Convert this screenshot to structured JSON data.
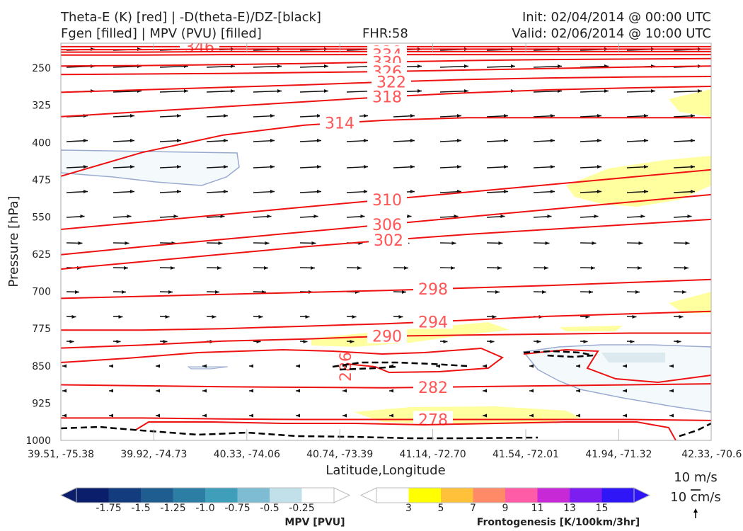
{
  "header": {
    "title_left_1": "Theta-E (K) [red] | -D(theta-E)/DZ-[black]",
    "title_left_2": "Fgen [filled] | MPV (PVU) [filled]",
    "fhr": "FHR:58",
    "init": "Init: 02/04/2014 @ 00:00 UTC",
    "valid": "Valid: 02/06/2014 @ 10:00 UTC"
  },
  "chart_data": {
    "type": "cross-section",
    "xlabel": "Latitude,Longitude",
    "ylabel": "Pressure [hPa]",
    "x_ticks": [
      "39.51, -75.38",
      "39.92, -74.73",
      "40.33, -74.06",
      "40.74, -73.39",
      "41.14, -72.70",
      "41.54, -72.01",
      "41.94, -71.32",
      "42.33, -70.6"
    ],
    "y_ticks": [
      250,
      325,
      400,
      475,
      550,
      625,
      700,
      775,
      850,
      925,
      1000
    ],
    "ylim": [
      1000,
      200
    ],
    "theta_e_contours": [
      {
        "value": 346,
        "label": "346",
        "y": [
          207,
          207,
          207,
          207,
          207,
          207,
          207,
          207,
          207
        ]
      },
      {
        "value": 342,
        "label": "342",
        "y": [
          213,
          213,
          212,
          212,
          212,
          212,
          212,
          212,
          212
        ]
      },
      {
        "value": 338,
        "label": "338",
        "y": [
          218,
          218,
          217,
          217,
          217,
          217,
          217,
          217,
          217
        ]
      },
      {
        "value": 334,
        "label": "334",
        "y": [
          224,
          224,
          223,
          223,
          223,
          223,
          223,
          223,
          223
        ]
      },
      {
        "value": 330,
        "label": "330",
        "y": [
          246,
          245,
          243,
          241,
          238,
          235,
          233,
          232,
          231
        ]
      },
      {
        "value": 326,
        "label": "326",
        "y": [
          263,
          262,
          261,
          259,
          257,
          254,
          251,
          248,
          246
        ]
      },
      {
        "value": 322,
        "label": "322",
        "y": [
          299,
          294,
          289,
          284,
          278,
          273,
          270,
          268,
          267
        ]
      },
      {
        "value": 318,
        "label": "318",
        "y": [
          348,
          338,
          328,
          318,
          308,
          300,
          294,
          290,
          287
        ]
      },
      {
        "value": 314,
        "label": "314",
        "y": [
          468,
          420,
          385,
          365,
          355,
          350,
          350,
          350,
          350
        ]
      },
      {
        "value": 310,
        "label": "310",
        "y": [
          575,
          560,
          545,
          530,
          515,
          500,
          485,
          470,
          455
        ]
      },
      {
        "value": 306,
        "label": "306",
        "y": [
          626,
          610,
          595,
          580,
          565,
          550,
          535,
          520,
          505
        ]
      },
      {
        "value": 302,
        "label": "302",
        "y": [
          655,
          640,
          625,
          610,
          597,
          585,
          575,
          565,
          555
        ]
      },
      {
        "value": 298,
        "label": "298",
        "y": [
          714,
          710,
          706,
          702,
          698,
          693,
          688,
          682,
          676
        ]
      },
      {
        "value": 294,
        "label": "294",
        "y": [
          778,
          778,
          775,
          770,
          765,
          758,
          750,
          745,
          740
        ]
      },
      {
        "value": 290,
        "label": "290",
        "y": [
          814,
          808,
          800,
          796,
          790,
          788,
          786,
          784,
          784
        ]
      },
      {
        "value": 282,
        "label": "282",
        "y": [
          888,
          890,
          892,
          893,
          894,
          892,
          890,
          888,
          886
        ]
      },
      {
        "value": 278,
        "label": "278",
        "y": [
          955,
          955,
          957,
          958,
          958,
          958,
          958,
          958,
          960
        ]
      }
    ],
    "dthetae_dz_contour": "negative (dashed black), near 850 hPa and 1000 hPa",
    "fgen_colorbar": {
      "title": "Frontogenesis [K/100km/3hr]",
      "ticks": [
        "3",
        "5",
        "7",
        "9",
        "11",
        "13",
        "15"
      ],
      "colors": [
        "#ffffff",
        "#ffff00",
        "#ffc13a",
        "#ff8a67",
        "#ff5ca8",
        "#c729d6",
        "#7d1ef0",
        "#2f16f7"
      ]
    },
    "mpv_colorbar": {
      "title": "MPV [PVU]",
      "ticks": [
        "-1.75",
        "-1.5",
        "-1.25",
        "-1.0",
        "-0.75",
        "-0.5",
        "-0.25"
      ],
      "colors": [
        "#0b1e6b",
        "#133c7e",
        "#1f5c90",
        "#2d7ea5",
        "#3f9fba",
        "#7dbcd3",
        "#c2e0ea",
        "#ffffff"
      ]
    },
    "wind_reference": {
      "h_label": "10 m/s",
      "v_label": "10 cm/s"
    }
  }
}
